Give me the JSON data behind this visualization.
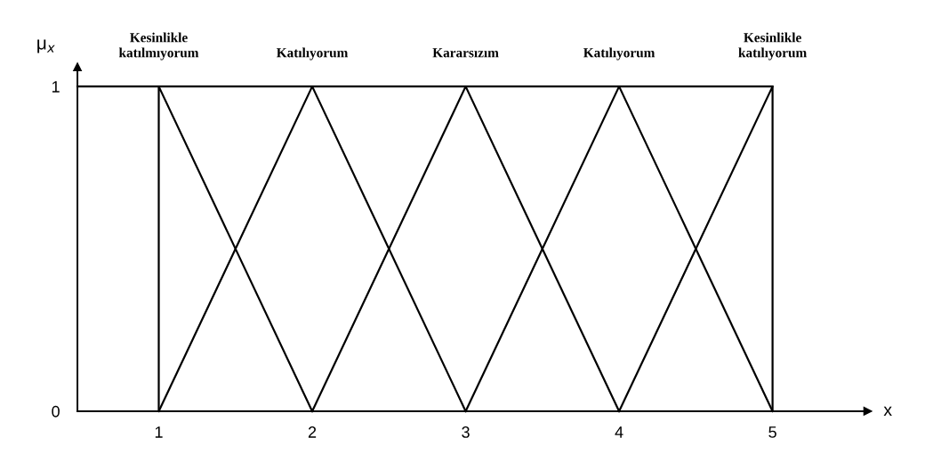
{
  "chart_data": {
    "type": "line",
    "xlim": [
      0.47,
      5.62
    ],
    "ylim": [
      0,
      1.06
    ],
    "xticks": [
      1,
      2,
      3,
      4,
      5
    ],
    "yticks": [
      0,
      1
    ],
    "xlabel": "x",
    "ylabel": "μ$_{x}$",
    "grid": false,
    "legend": false,
    "marker": "none",
    "line_style": "solid",
    "series": [
      {
        "name": "Kesinlikle\nkatılmıyorum",
        "color": "#000000",
        "x": [
          1,
          1,
          2
        ],
        "values": [
          0,
          1,
          0
        ]
      },
      {
        "name": "Katılıyorum",
        "color": "#000000",
        "x": [
          1,
          2,
          3
        ],
        "values": [
          0,
          1,
          0
        ]
      },
      {
        "name": "Kararsızım",
        "color": "#000000",
        "x": [
          2,
          3,
          4
        ],
        "values": [
          0,
          1,
          0
        ]
      },
      {
        "name": "Katılıyorum",
        "color": "#000000",
        "x": [
          3,
          4,
          5
        ],
        "values": [
          0,
          1,
          0
        ]
      },
      {
        "name": "Kesinlikle\nkatılıyorum",
        "color": "#000000",
        "x": [
          4,
          5,
          5
        ],
        "values": [
          0,
          1,
          0
        ]
      },
      {
        "color": "#000000",
        "x": [
          0.47,
          5
        ],
        "values": [
          1,
          1
        ]
      }
    ]
  }
}
